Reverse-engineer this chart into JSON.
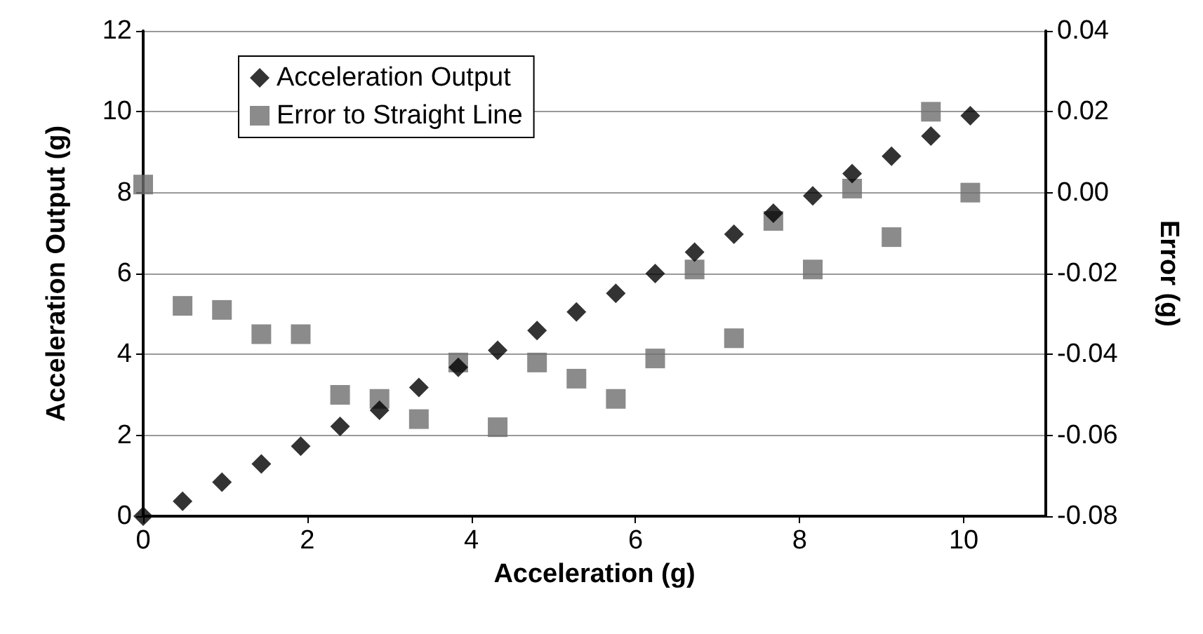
{
  "chart_data": {
    "type": "scatter",
    "xlabel": "Acceleration (g)",
    "ylabel": "Acceleration Output (g)",
    "y2label": "Error (g)",
    "x": [
      0,
      0.48,
      0.96,
      1.44,
      1.92,
      2.4,
      2.88,
      3.36,
      3.84,
      4.32,
      4.8,
      5.28,
      5.76,
      6.24,
      6.72,
      7.2,
      7.68,
      8.16,
      8.64,
      9.12,
      9.6,
      10.08
    ],
    "series": [
      {
        "name": "Acceleration Output",
        "color": "#000000",
        "marker": "diamond",
        "values": [
          0,
          0.37,
          0.84,
          1.29,
          1.73,
          2.22,
          2.62,
          3.18,
          3.68,
          4.1,
          4.59,
          5.05,
          5.51,
          6.0,
          6.53,
          6.97,
          7.49,
          7.92,
          8.47,
          8.9,
          9.4,
          9.9
        ]
      },
      {
        "name": "Error to Straight Line",
        "color": "#6e6e6e",
        "marker": "square",
        "axis": "y2",
        "values": [
          0.002,
          -0.028,
          -0.029,
          -0.035,
          -0.035,
          -0.05,
          -0.051,
          -0.056,
          -0.042,
          -0.058,
          -0.042,
          -0.046,
          -0.051,
          -0.041,
          -0.019,
          -0.036,
          -0.007,
          -0.019,
          0.001,
          -0.011,
          0.02,
          0.0
        ]
      }
    ],
    "xlim": [
      0,
      11
    ],
    "xticks": [
      0,
      2,
      4,
      6,
      8,
      10
    ],
    "ylim": [
      0,
      12
    ],
    "yticks": [
      0,
      2,
      4,
      6,
      8,
      10,
      12
    ],
    "y2lim": [
      -0.08,
      0.04
    ],
    "y2ticks": [
      {
        "value": -0.08,
        "label": "-0.08"
      },
      {
        "value": -0.06,
        "label": "-0.06"
      },
      {
        "value": -0.04,
        "label": "-0.04"
      },
      {
        "value": -0.02,
        "label": "-0.02"
      },
      {
        "value": 0,
        "label": "0.00"
      },
      {
        "value": 0.02,
        "label": "0.02"
      },
      {
        "value": 0.04,
        "label": "0.04"
      }
    ],
    "grid": "y",
    "legend": "top left"
  }
}
